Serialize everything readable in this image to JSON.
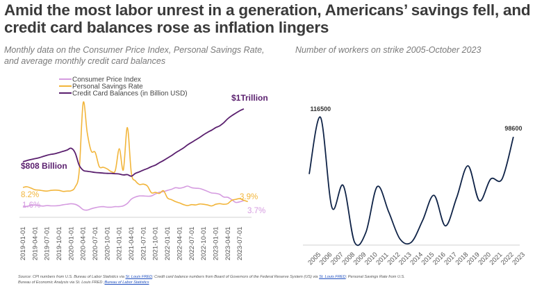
{
  "title": "Amid the most labor unrest in a generation, Americans’ savings fell, and credit card balances rose as inflation lingers",
  "subtitle_left": "Monthly data on the Consumer Price Index, Personal Savings Rate, and average monthly credit card balances",
  "subtitle_right": "Number of workers on strike 2005-October 2023",
  "colors": {
    "cpi": "#d59be0",
    "savings": "#f2b53a",
    "credit": "#5a1f6e",
    "strikes": "#0f2347",
    "axis": "#d0d0d0"
  },
  "source": {
    "prefix": "Source:    CPI numbers from U.S. Bureau of Labor Statistics via ",
    "link1": "St. Louis FRED",
    "mid1": "; Credit card balance numbers from Board of Governors of the Federal Reserve System (US) via ",
    "link2": "St. Louis FRED",
    "mid2": "; Personal Savings Rate from U.S. Bureau of Economic Analysis via St. Louis FRED ;",
    "link3": "Bureau of Labor Statistics"
  },
  "chart_data": [
    {
      "type": "line",
      "title": "Monthly data on the Consumer Price Index, Personal Savings Rate, and average monthly credit card balances",
      "xlabel": "",
      "ylabel": "",
      "grid": false,
      "legend_position": "top-center",
      "x_ticks": [
        "2019-01-01",
        "2019-04-01",
        "2019-07-01",
        "2019-10-01",
        "2020-01-01",
        "2020-04-01",
        "2020-07-01",
        "2020-10-01",
        "2021-01-01",
        "2021-04-01",
        "2021-07-01",
        "2021-10-01",
        "2022-01-01",
        "2022-04-01",
        "2022-07-01",
        "2022-10-01",
        "2023-01-01",
        "2023-04-01",
        "2023-07-01"
      ],
      "x_start": "2019-01",
      "x_unit": "month",
      "series": [
        {
          "key": "cpi",
          "name": "Consumer Price Index",
          "unit": "%",
          "range": [
            0,
            9.1
          ],
          "values": [
            1.6,
            1.5,
            1.9,
            2.0,
            1.8,
            1.6,
            1.8,
            1.7,
            1.7,
            1.8,
            2.1,
            2.3,
            2.5,
            2.3,
            1.5,
            0.3,
            0.1,
            0.6,
            1.0,
            1.3,
            1.4,
            1.2,
            1.2,
            1.4,
            1.4,
            1.7,
            2.6,
            4.2,
            5.0,
            5.4,
            5.4,
            5.3,
            5.4,
            6.2,
            6.8,
            7.0,
            7.5,
            7.9,
            8.5,
            8.3,
            8.6,
            9.1,
            8.5,
            8.3,
            8.2,
            7.7,
            7.1,
            6.5,
            6.4,
            6.0,
            5.0,
            4.9,
            4.0,
            3.0,
            3.2,
            3.7
          ],
          "start_label": "1.6%",
          "end_label": "3.7%"
        },
        {
          "key": "savings",
          "name": "Personal Savings Rate",
          "unit": "%",
          "range": [
            0,
            33.8
          ],
          "values": [
            8.2,
            8.4,
            8.0,
            7.5,
            7.4,
            7.2,
            7.1,
            7.3,
            7.4,
            7.3,
            7.0,
            7.1,
            7.2,
            8.3,
            12.9,
            33.8,
            24.8,
            19.2,
            18.8,
            14.5,
            14.3,
            13.8,
            13.0,
            13.3,
            19.9,
            13.5,
            26.3,
            12.5,
            10.2,
            9.1,
            9.2,
            8.6,
            6.6,
            6.7,
            6.4,
            7.2,
            5.0,
            4.5,
            3.9,
            3.5,
            3.0,
            2.7,
            3.0,
            2.9,
            3.2,
            3.1,
            2.9,
            2.6,
            3.1,
            3.3,
            3.1,
            3.3,
            4.3,
            4.6,
            4.8,
            4.3,
            3.9
          ],
          "start_label": "8.2%",
          "end_label": "3.9%"
        },
        {
          "key": "credit",
          "name": "Credit Card Balances (in Billion USD)",
          "unit": "Billion USD",
          "range": [
            740,
            1000
          ],
          "values": [
            808,
            812,
            815,
            818,
            821,
            825,
            829,
            832,
            834,
            838,
            842,
            846,
            852,
            837,
            797,
            780,
            777,
            775,
            773,
            772,
            771,
            770,
            770,
            769,
            768,
            765,
            766,
            761,
            770,
            775,
            781,
            786,
            792,
            797,
            805,
            812,
            820,
            828,
            837,
            845,
            853,
            863,
            871,
            879,
            887,
            896,
            904,
            911,
            919,
            925,
            935,
            948,
            958,
            966,
            974,
            980
          ],
          "start_label": "$808 Billion",
          "end_label": "$1Trillion"
        }
      ]
    },
    {
      "type": "line",
      "title": "Number of workers on strike 2005-October 2023",
      "xlabel": "",
      "ylabel": "",
      "grid": false,
      "x": [
        "2005",
        "2006",
        "2007",
        "2008",
        "2009",
        "2010",
        "2011",
        "2012",
        "2013",
        "2014",
        "2015",
        "2016",
        "2017",
        "2018",
        "2019",
        "2020",
        "2021",
        "2022",
        "2023"
      ],
      "ylim": [
        0,
        116500
      ],
      "series": [
        {
          "name": "Workers on strike",
          "values": [
            64500,
            116500,
            34000,
            54000,
            2000,
            11000,
            53000,
            30000,
            5000,
            2000,
            22000,
            45000,
            17000,
            43000,
            72000,
            40000,
            60000,
            60000,
            98600
          ]
        }
      ],
      "annotations": [
        {
          "x": "2006",
          "label": "116500"
        },
        {
          "x": "2023",
          "label": "98600"
        }
      ]
    }
  ]
}
